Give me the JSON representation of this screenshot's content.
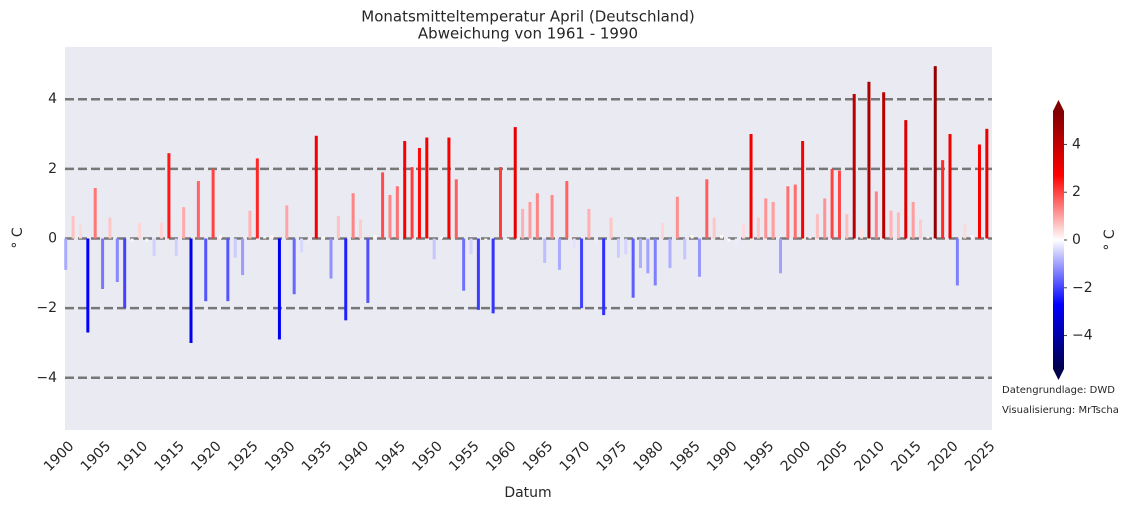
{
  "chart_data": {
    "type": "bar",
    "title": "Monatsmitteltemperatur April (Deutschland)",
    "subtitle": "Abweichung von 1961 - 1990",
    "x_label": "Datum",
    "y_label": "° C",
    "x": [
      1900,
      1901,
      1902,
      1903,
      1904,
      1905,
      1906,
      1907,
      1908,
      1909,
      1910,
      1911,
      1912,
      1913,
      1914,
      1915,
      1916,
      1917,
      1918,
      1919,
      1920,
      1921,
      1922,
      1923,
      1924,
      1925,
      1926,
      1927,
      1928,
      1929,
      1930,
      1931,
      1932,
      1933,
      1934,
      1935,
      1936,
      1937,
      1938,
      1939,
      1940,
      1941,
      1942,
      1943,
      1944,
      1945,
      1946,
      1947,
      1948,
      1949,
      1950,
      1951,
      1952,
      1953,
      1954,
      1955,
      1956,
      1957,
      1958,
      1959,
      1960,
      1961,
      1962,
      1963,
      1964,
      1965,
      1966,
      1967,
      1968,
      1969,
      1970,
      1971,
      1972,
      1973,
      1974,
      1975,
      1976,
      1977,
      1978,
      1979,
      1980,
      1981,
      1982,
      1983,
      1984,
      1985,
      1986,
      1987,
      1988,
      1989,
      1990,
      1991,
      1992,
      1993,
      1994,
      1995,
      1996,
      1997,
      1998,
      1999,
      2000,
      2001,
      2002,
      2003,
      2004,
      2005,
      2006,
      2007,
      2008,
      2009,
      2010,
      2011,
      2012,
      2013,
      2014,
      2015,
      2016,
      2017,
      2018,
      2019,
      2020,
      2021,
      2022,
      2023,
      2024,
      2025
    ],
    "values": [
      -0.9,
      0.65,
      0.4,
      -2.7,
      1.45,
      -1.45,
      0.6,
      -1.25,
      -2.0,
      -0.1,
      0.45,
      -0.1,
      -0.5,
      0.45,
      2.45,
      -0.5,
      0.9,
      -3.0,
      1.65,
      -1.8,
      2.0,
      0.1,
      -1.8,
      -0.55,
      -1.05,
      0.8,
      2.3,
      0.05,
      0.1,
      -2.9,
      0.95,
      -1.6,
      -0.4,
      -0.2,
      2.95,
      0.05,
      -1.15,
      0.65,
      -2.35,
      1.3,
      0.55,
      -1.85,
      0.1,
      1.9,
      1.25,
      1.5,
      2.8,
      2.05,
      2.6,
      2.9,
      -0.6,
      0.05,
      2.9,
      1.7,
      -1.5,
      -0.45,
      -2.05,
      -0.05,
      -2.15,
      2.05,
      -0.05,
      3.2,
      0.85,
      1.05,
      1.3,
      -0.7,
      1.25,
      -0.9,
      1.65,
      -0.3,
      -2.0,
      0.85,
      -0.2,
      -2.2,
      0.6,
      -0.55,
      -0.45,
      -1.7,
      -0.85,
      -1.0,
      -1.35,
      0.45,
      -0.85,
      1.2,
      -0.6,
      0.1,
      -1.1,
      1.7,
      0.6,
      0.1,
      -0.1,
      -0.2,
      0.4,
      3.0,
      0.6,
      1.15,
      1.05,
      -1.0,
      1.5,
      1.55,
      2.8,
      0.05,
      0.7,
      1.15,
      2.0,
      1.95,
      0.7,
      4.15,
      0.3,
      4.5,
      1.35,
      4.2,
      0.8,
      0.75,
      3.4,
      1.05,
      0.55,
      0.05,
      4.95,
      2.25,
      3.0,
      -1.35,
      0.4,
      0.1,
      2.7,
      3.15
    ],
    "colormap": "seismic",
    "xlim": [
      1899.9,
      2025.7
    ],
    "ylim": [
      -5.5,
      5.5
    ],
    "xticks": [
      1900,
      1905,
      1910,
      1915,
      1920,
      1925,
      1930,
      1935,
      1940,
      1945,
      1950,
      1955,
      1960,
      1965,
      1970,
      1975,
      1980,
      1985,
      1990,
      1995,
      2000,
      2005,
      2010,
      2015,
      2020,
      2025
    ],
    "yticks": [
      {
        "value": -4,
        "label": "−4"
      },
      {
        "value": -2,
        "label": "−2"
      },
      0,
      2,
      4
    ],
    "grid": true,
    "colorbar": {
      "label": "° C",
      "lim": [
        -5.4,
        5.4
      ],
      "extend": "both",
      "ticks": [
        {
          "value": -4,
          "label": "−4"
        },
        {
          "value": -2,
          "label": "−2"
        },
        0,
        2,
        4
      ]
    },
    "annotations": [
      "Datengrundlage: DWD",
      "Visualisierung: MrTscha"
    ]
  }
}
